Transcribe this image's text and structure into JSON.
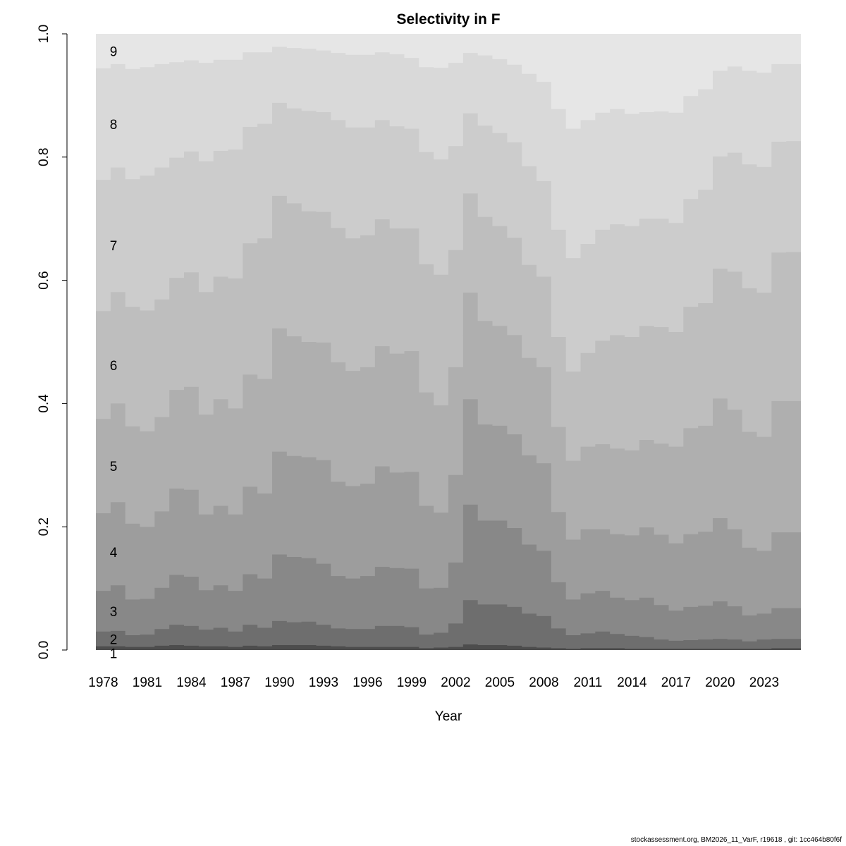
{
  "chart_data": {
    "type": "area",
    "stacked": true,
    "step": true,
    "title": "Selectivity in F",
    "xlabel": "Year",
    "ylabel": "",
    "ylim": [
      0,
      1
    ],
    "yticks": [
      "0.0",
      "0.2",
      "0.4",
      "0.6",
      "0.8",
      "1.0"
    ],
    "xtick_labels": [
      "1978",
      "1981",
      "1984",
      "1987",
      "1990",
      "1993",
      "1996",
      "1999",
      "2002",
      "2005",
      "2008",
      "2011",
      "2014",
      "2017",
      "2020",
      "2023"
    ],
    "x": [
      1978,
      1979,
      1980,
      1981,
      1982,
      1983,
      1984,
      1985,
      1986,
      1987,
      1988,
      1989,
      1990,
      1991,
      1992,
      1993,
      1994,
      1995,
      1996,
      1997,
      1998,
      1999,
      2000,
      2001,
      2002,
      2003,
      2004,
      2005,
      2006,
      2007,
      2008,
      2009,
      2010,
      2011,
      2012,
      2013,
      2014,
      2015,
      2016,
      2017,
      2018,
      2019,
      2020,
      2021,
      2022,
      2023,
      2024,
      2025
    ],
    "series": [
      {
        "name": "1",
        "color": "#4D4D4D",
        "upper": [
          0.006,
          0.006,
          0.005,
          0.005,
          0.007,
          0.008,
          0.007,
          0.006,
          0.006,
          0.005,
          0.007,
          0.006,
          0.008,
          0.008,
          0.008,
          0.007,
          0.006,
          0.005,
          0.005,
          0.005,
          0.005,
          0.005,
          0.003,
          0.004,
          0.005,
          0.009,
          0.008,
          0.008,
          0.007,
          0.005,
          0.004,
          0.003,
          0.002,
          0.003,
          0.003,
          0.003,
          0.002,
          0.002,
          0.002,
          0.002,
          0.002,
          0.002,
          0.002,
          0.002,
          0.002,
          0.002,
          0.003,
          0.003
        ]
      },
      {
        "name": "2",
        "color": "#6E6E6E",
        "upper": [
          0.03,
          0.031,
          0.024,
          0.025,
          0.034,
          0.041,
          0.039,
          0.033,
          0.036,
          0.03,
          0.041,
          0.036,
          0.047,
          0.045,
          0.046,
          0.041,
          0.035,
          0.034,
          0.034,
          0.039,
          0.039,
          0.037,
          0.025,
          0.028,
          0.043,
          0.081,
          0.074,
          0.074,
          0.07,
          0.059,
          0.055,
          0.035,
          0.024,
          0.027,
          0.03,
          0.026,
          0.023,
          0.021,
          0.017,
          0.015,
          0.016,
          0.017,
          0.018,
          0.017,
          0.014,
          0.017,
          0.018,
          0.018
        ]
      },
      {
        "name": "3",
        "color": "#888888",
        "upper": [
          0.096,
          0.105,
          0.082,
          0.083,
          0.101,
          0.122,
          0.119,
          0.097,
          0.105,
          0.096,
          0.123,
          0.116,
          0.155,
          0.151,
          0.149,
          0.14,
          0.12,
          0.116,
          0.12,
          0.135,
          0.133,
          0.132,
          0.1,
          0.101,
          0.142,
          0.236,
          0.21,
          0.21,
          0.198,
          0.171,
          0.161,
          0.11,
          0.082,
          0.092,
          0.096,
          0.085,
          0.081,
          0.085,
          0.073,
          0.064,
          0.07,
          0.072,
          0.079,
          0.071,
          0.056,
          0.059,
          0.068,
          0.068
        ]
      },
      {
        "name": "4",
        "color": "#9D9D9D",
        "upper": [
          0.222,
          0.24,
          0.205,
          0.2,
          0.225,
          0.262,
          0.26,
          0.22,
          0.234,
          0.22,
          0.265,
          0.254,
          0.322,
          0.315,
          0.313,
          0.308,
          0.273,
          0.266,
          0.27,
          0.298,
          0.288,
          0.289,
          0.234,
          0.223,
          0.284,
          0.407,
          0.366,
          0.364,
          0.35,
          0.316,
          0.303,
          0.224,
          0.179,
          0.196,
          0.196,
          0.188,
          0.186,
          0.199,
          0.187,
          0.173,
          0.188,
          0.192,
          0.214,
          0.196,
          0.166,
          0.161,
          0.191,
          0.191
        ]
      },
      {
        "name": "5",
        "color": "#AFAFAF",
        "upper": [
          0.375,
          0.4,
          0.363,
          0.355,
          0.378,
          0.422,
          0.427,
          0.382,
          0.407,
          0.392,
          0.447,
          0.44,
          0.522,
          0.509,
          0.5,
          0.499,
          0.467,
          0.453,
          0.459,
          0.493,
          0.481,
          0.485,
          0.418,
          0.397,
          0.459,
          0.58,
          0.534,
          0.526,
          0.511,
          0.474,
          0.459,
          0.362,
          0.307,
          0.33,
          0.334,
          0.327,
          0.324,
          0.341,
          0.335,
          0.33,
          0.36,
          0.364,
          0.408,
          0.39,
          0.354,
          0.346,
          0.404,
          0.404
        ]
      },
      {
        "name": "6",
        "color": "#BEBEBE",
        "upper": [
          0.55,
          0.581,
          0.557,
          0.551,
          0.569,
          0.604,
          0.613,
          0.581,
          0.606,
          0.603,
          0.66,
          0.668,
          0.737,
          0.725,
          0.712,
          0.711,
          0.685,
          0.668,
          0.673,
          0.699,
          0.684,
          0.684,
          0.626,
          0.609,
          0.649,
          0.741,
          0.703,
          0.688,
          0.669,
          0.625,
          0.606,
          0.508,
          0.452,
          0.482,
          0.502,
          0.511,
          0.508,
          0.526,
          0.524,
          0.516,
          0.557,
          0.563,
          0.619,
          0.614,
          0.587,
          0.58,
          0.645,
          0.646
        ]
      },
      {
        "name": "7",
        "color": "#CCCCCC",
        "upper": [
          0.763,
          0.783,
          0.764,
          0.77,
          0.783,
          0.799,
          0.809,
          0.793,
          0.81,
          0.812,
          0.849,
          0.854,
          0.888,
          0.879,
          0.875,
          0.873,
          0.86,
          0.848,
          0.848,
          0.86,
          0.85,
          0.846,
          0.808,
          0.796,
          0.818,
          0.871,
          0.851,
          0.839,
          0.824,
          0.785,
          0.761,
          0.682,
          0.636,
          0.659,
          0.682,
          0.691,
          0.688,
          0.7,
          0.7,
          0.693,
          0.732,
          0.747,
          0.801,
          0.807,
          0.788,
          0.784,
          0.825,
          0.826
        ]
      },
      {
        "name": "8",
        "color": "#D9D9D9",
        "upper": [
          0.944,
          0.951,
          0.943,
          0.946,
          0.951,
          0.954,
          0.957,
          0.953,
          0.958,
          0.958,
          0.97,
          0.97,
          0.979,
          0.977,
          0.976,
          0.973,
          0.969,
          0.966,
          0.966,
          0.97,
          0.967,
          0.961,
          0.946,
          0.945,
          0.953,
          0.969,
          0.965,
          0.959,
          0.95,
          0.935,
          0.922,
          0.878,
          0.846,
          0.86,
          0.872,
          0.878,
          0.87,
          0.873,
          0.874,
          0.872,
          0.899,
          0.91,
          0.94,
          0.947,
          0.94,
          0.937,
          0.951,
          0.951
        ]
      },
      {
        "name": "9",
        "color": "#E6E6E6",
        "upper": 1.0
      }
    ],
    "grid": false,
    "legend": "left"
  },
  "footer": "stockassessment.org, BM2026_11_VarF, r19618 , git: 1cc464b80f6f"
}
